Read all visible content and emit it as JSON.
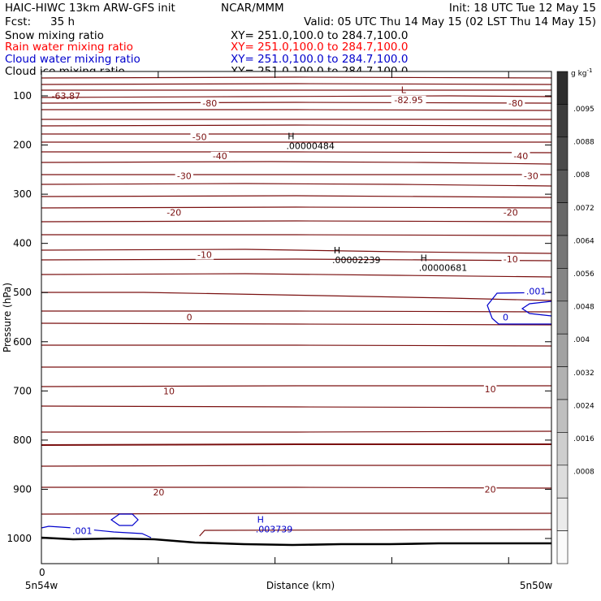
{
  "header": {
    "model": "HAIC-HIWC 13km ARW-GFS init",
    "org": "NCAR/MMM",
    "init": "Init: 18 UTC Tue 12 May 15",
    "fcst_label": "Fcst:",
    "fcst_value": "35 h",
    "valid": "Valid: 05 UTC Thu 14 May 15 (02 LST Thu 14 May 15)",
    "fields": [
      {
        "name": "Snow mixing ratio",
        "xy": "XY=  251.0,100.0 to 284.7,100.0",
        "color": "#000000"
      },
      {
        "name": "Rain water mixing ratio",
        "xy": "XY=  251.0,100.0 to 284.7,100.0",
        "color": "#ff0000"
      },
      {
        "name": "Cloud water mixing ratio",
        "xy": "XY=  251.0,100.0 to 284.7,100.0",
        "color": "#0000cc"
      },
      {
        "name": "Cloud ice mixing ratio",
        "xy": "XY=  251.0,100.0 to 284.7,100.0",
        "color": "#000000"
      }
    ]
  },
  "chart_data": {
    "type": "contour-cross-section",
    "ylabel": "Pressure (hPa)",
    "xlabel": "Distance (km)",
    "x_start_label": "5n54w",
    "x_end_label": "5n50w",
    "x_zero_label": "0",
    "ylim": [
      1050,
      50
    ],
    "y_ticks": [
      100,
      200,
      300,
      400,
      500,
      600,
      700,
      800,
      900,
      1000
    ],
    "temperature_contour_color": "#7a1010",
    "cloud_water_color": "#0000cc",
    "temperature_contour_labels": [
      {
        "text": "-80",
        "x": 0.33,
        "p": 115
      },
      {
        "text": "-82.95",
        "x": 0.72,
        "p": 108
      },
      {
        "text": "-80",
        "x": 0.93,
        "p": 115
      },
      {
        "text": "-50",
        "x": 0.31,
        "p": 183
      },
      {
        "text": "-40",
        "x": 0.35,
        "p": 222
      },
      {
        "text": "-40",
        "x": 0.94,
        "p": 222
      },
      {
        "text": "-30",
        "x": 0.28,
        "p": 263
      },
      {
        "text": "-30",
        "x": 0.96,
        "p": 263
      },
      {
        "text": "-20",
        "x": 0.26,
        "p": 337
      },
      {
        "text": "-20",
        "x": 0.92,
        "p": 337
      },
      {
        "text": "-10",
        "x": 0.32,
        "p": 423
      },
      {
        "text": "-10",
        "x": 0.92,
        "p": 432
      },
      {
        "text": "0",
        "x": 0.29,
        "p": 550
      },
      {
        "text": "10",
        "x": 0.25,
        "p": 700
      },
      {
        "text": "10",
        "x": 0.88,
        "p": 696
      },
      {
        "text": "20",
        "x": 0.23,
        "p": 906
      },
      {
        "text": "20",
        "x": 0.88,
        "p": 900
      }
    ],
    "extrema_labels": [
      {
        "mark": "-63.87",
        "value": "",
        "x": 0.02,
        "p": 100,
        "color": "#7a1010"
      },
      {
        "mark": "L",
        "value": "",
        "x": 0.71,
        "p": 88,
        "color": "#7a1010"
      },
      {
        "mark": "H",
        "value": ".00000484",
        "x": 0.48,
        "p": 188,
        "color": "#000000"
      },
      {
        "mark": "H",
        "value": ".00002239",
        "x": 0.57,
        "p": 420,
        "color": "#000000"
      },
      {
        "mark": "H",
        "value": ".00000681",
        "x": 0.74,
        "p": 436,
        "color": "#000000"
      },
      {
        "mark": "H",
        "value": ".003739",
        "x": 0.42,
        "p": 968,
        "color": "#0000cc"
      }
    ],
    "cloud_water_contour_labels": [
      {
        "text": ".001",
        "x": 0.08,
        "p": 984
      },
      {
        "text": ".001",
        "x": 0.97,
        "p": 497
      },
      {
        "text": "0",
        "x": 0.91,
        "p": 550
      }
    ],
    "colorbar": {
      "unit": "g kg",
      "unit_superscript": "-1",
      "labels": [
        ".0095",
        ".0088",
        ".008",
        ".0072",
        ".0064",
        ".0056",
        ".0048",
        ".004",
        ".0032",
        ".0024",
        ".0016",
        ".0008"
      ]
    }
  }
}
